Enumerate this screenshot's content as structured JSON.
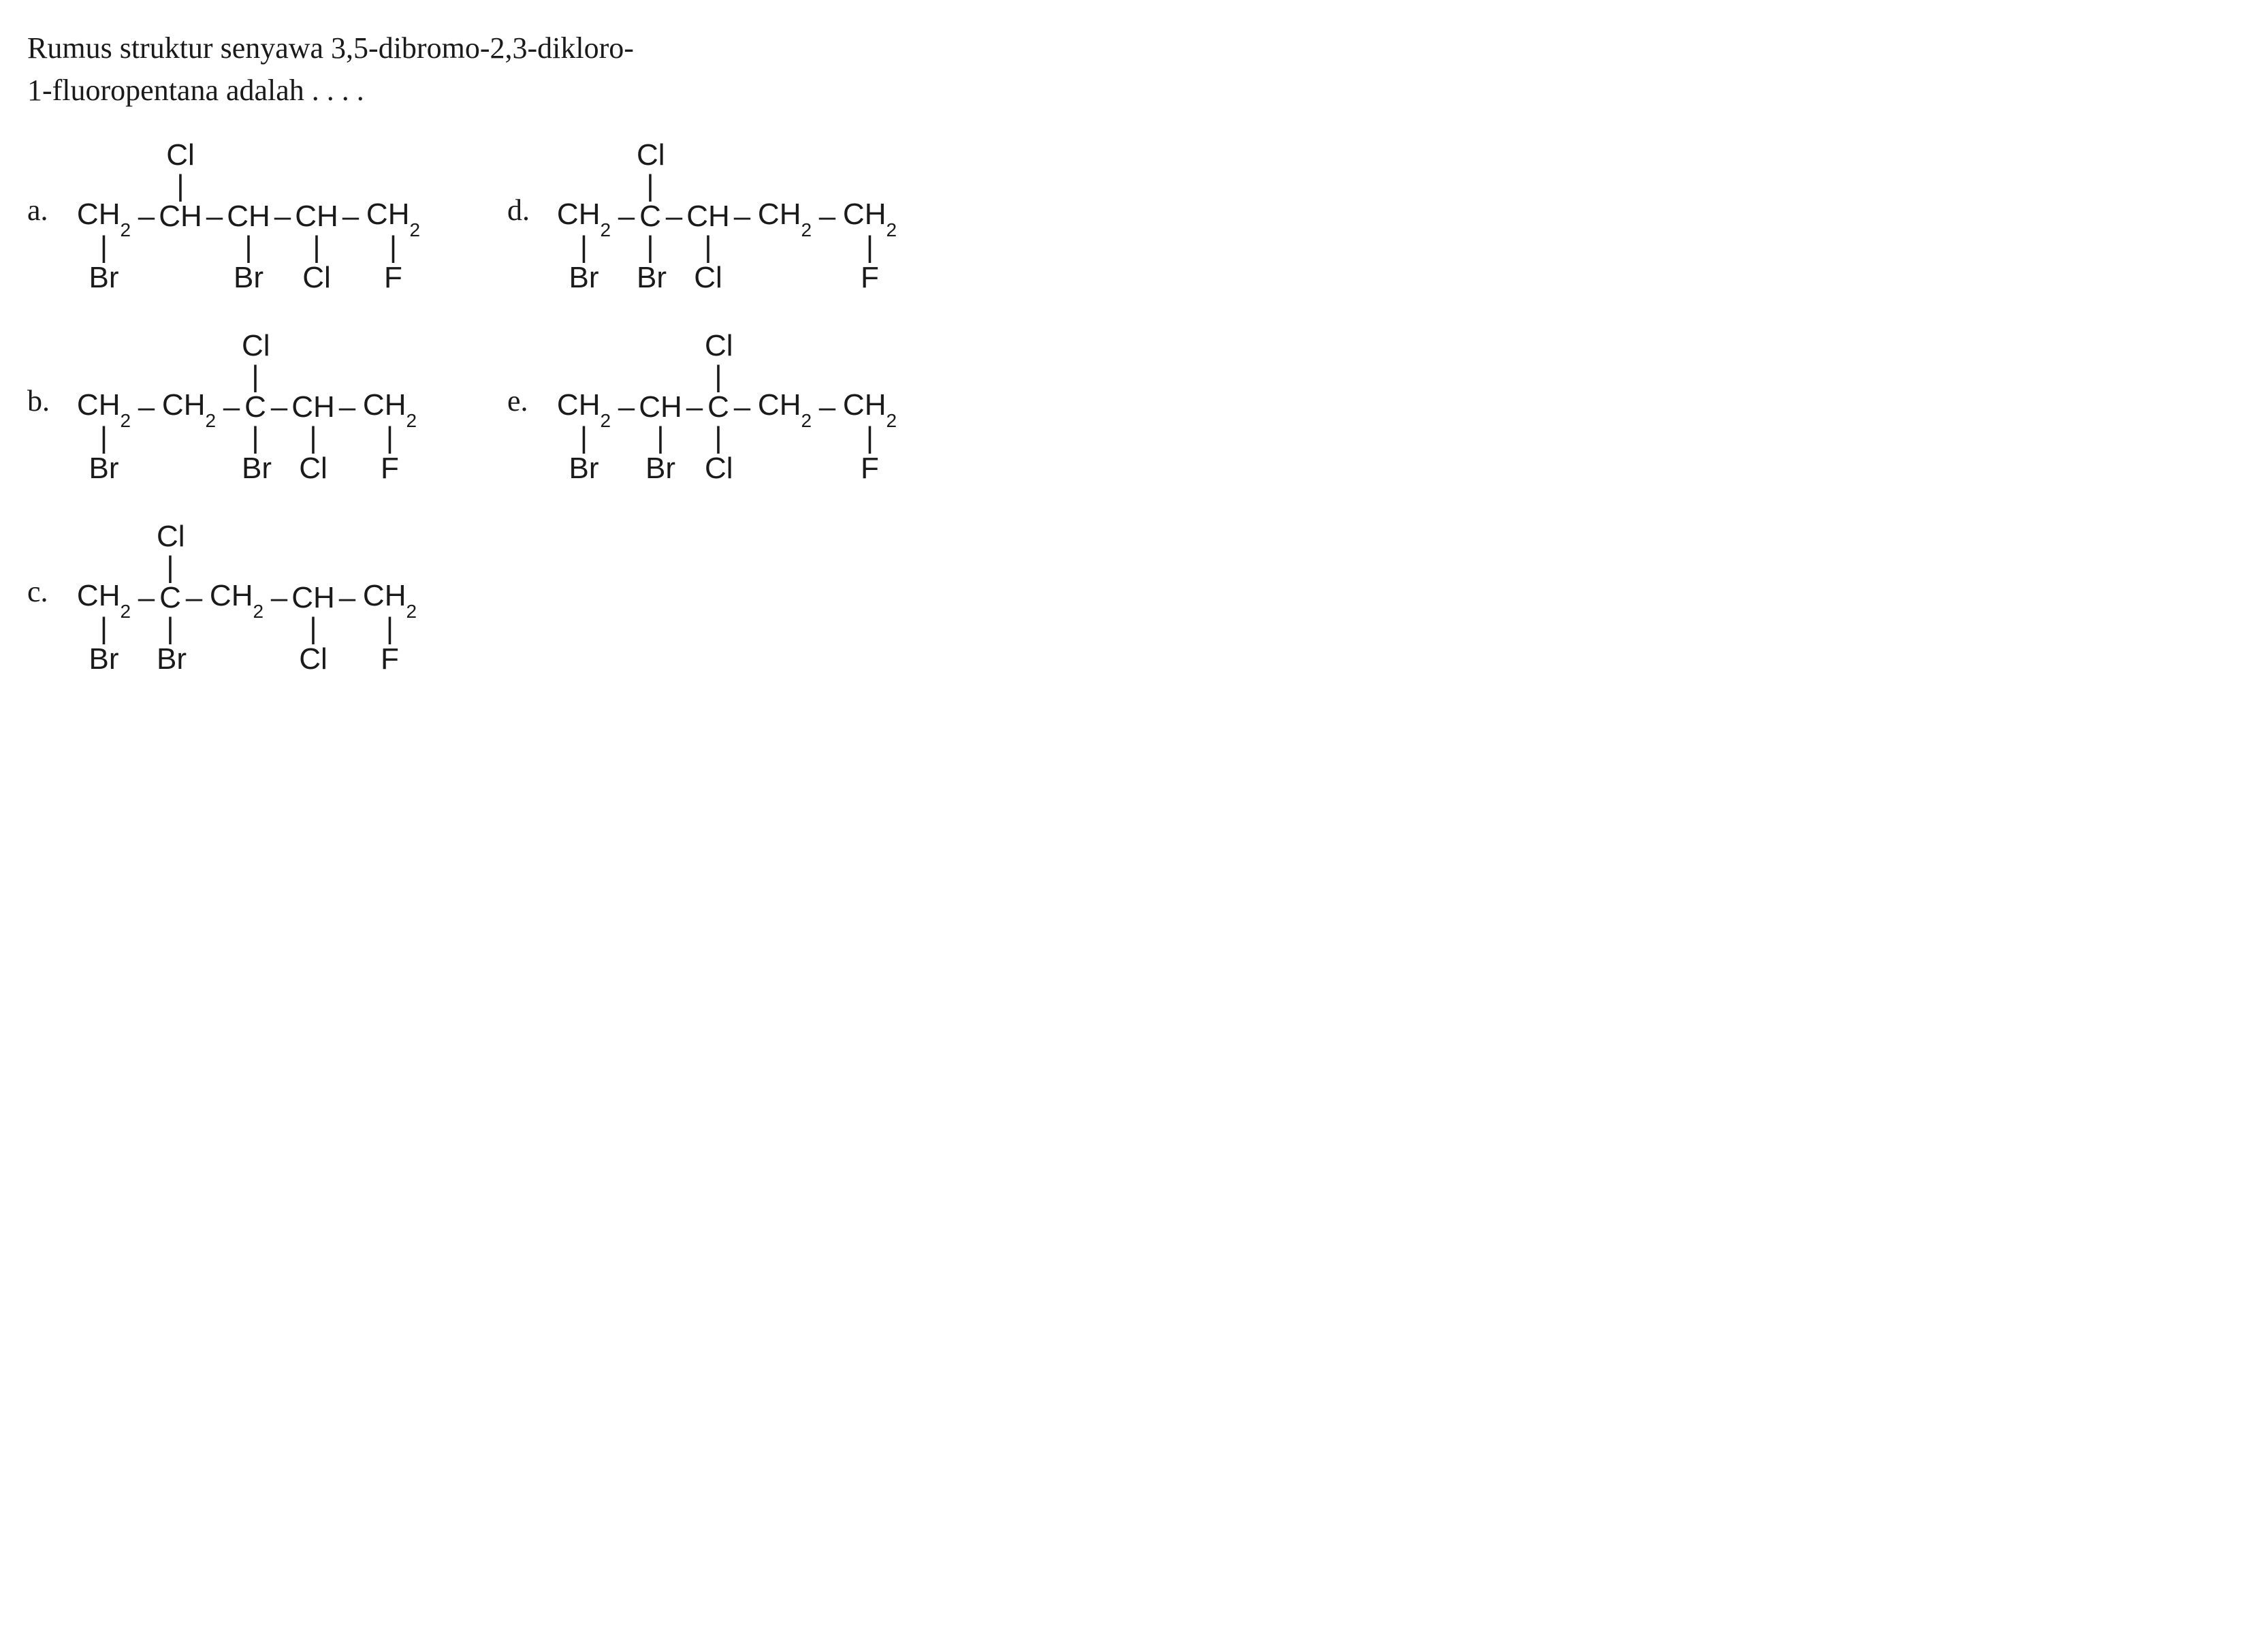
{
  "question": {
    "line1": "Rumus struktur senyawa 3,5-dibromo-2,3-dikloro-",
    "line2": "1-fluoropentana adalah . . . ."
  },
  "atoms": {
    "CH2": "CH",
    "CH": "CH",
    "C": "C",
    "Cl": "Cl",
    "Br": "Br",
    "F": "F",
    "sub2": "2"
  },
  "bonds": {
    "h": "–",
    "v": "|"
  },
  "options": {
    "a": {
      "label": "a.",
      "top_cl_col": 2,
      "chain": [
        "CH2",
        "CH",
        "CH",
        "CH",
        "CH2"
      ],
      "bottom": [
        {
          "col": 1,
          "sym": "Br"
        },
        {
          "col": 3,
          "sym": "Br"
        },
        {
          "col": 4,
          "sym": "Cl"
        },
        {
          "col": 5,
          "sym": "F"
        }
      ]
    },
    "b": {
      "label": "b.",
      "top_cl_col": 3,
      "chain": [
        "CH2",
        "CH2",
        "C",
        "CH",
        "CH2"
      ],
      "bottom": [
        {
          "col": 1,
          "sym": "Br"
        },
        {
          "col": 3,
          "sym": "Br"
        },
        {
          "col": 4,
          "sym": "Cl"
        },
        {
          "col": 5,
          "sym": "F"
        }
      ]
    },
    "c": {
      "label": "c.",
      "top_cl_col": 2,
      "chain": [
        "CH2",
        "C",
        "CH2",
        "CH",
        "CH2"
      ],
      "bottom": [
        {
          "col": 1,
          "sym": "Br"
        },
        {
          "col": 2,
          "sym": "Br"
        },
        {
          "col": 4,
          "sym": "Cl"
        },
        {
          "col": 5,
          "sym": "F"
        }
      ]
    },
    "d": {
      "label": "d.",
      "top_cl_col": 2,
      "chain": [
        "CH2",
        "C",
        "CH",
        "CH2",
        "CH2"
      ],
      "bottom": [
        {
          "col": 1,
          "sym": "Br"
        },
        {
          "col": 2,
          "sym": "Br"
        },
        {
          "col": 3,
          "sym": "Cl"
        },
        {
          "col": 5,
          "sym": "F"
        }
      ]
    },
    "e": {
      "label": "e.",
      "top_cl_col": 3,
      "chain": [
        "CH2",
        "CH",
        "C",
        "CH2",
        "CH2"
      ],
      "bottom": [
        {
          "col": 1,
          "sym": "Br"
        },
        {
          "col": 2,
          "sym": "Br"
        },
        {
          "col": 3,
          "sym": "Cl"
        },
        {
          "col": 5,
          "sym": "F"
        }
      ]
    }
  },
  "styling": {
    "background_color": "#ffffff",
    "text_color": "#1a1a1a",
    "question_fontsize": 44,
    "structure_fontsize": 44,
    "subscript_fontsize": 28,
    "font_family_question": "Georgia, Times New Roman, serif",
    "font_family_structure": "Arial, Helvetica, sans-serif",
    "col_widths": {
      "CH2": 95,
      "CH": 70,
      "C": 40,
      "bond": 30
    }
  }
}
